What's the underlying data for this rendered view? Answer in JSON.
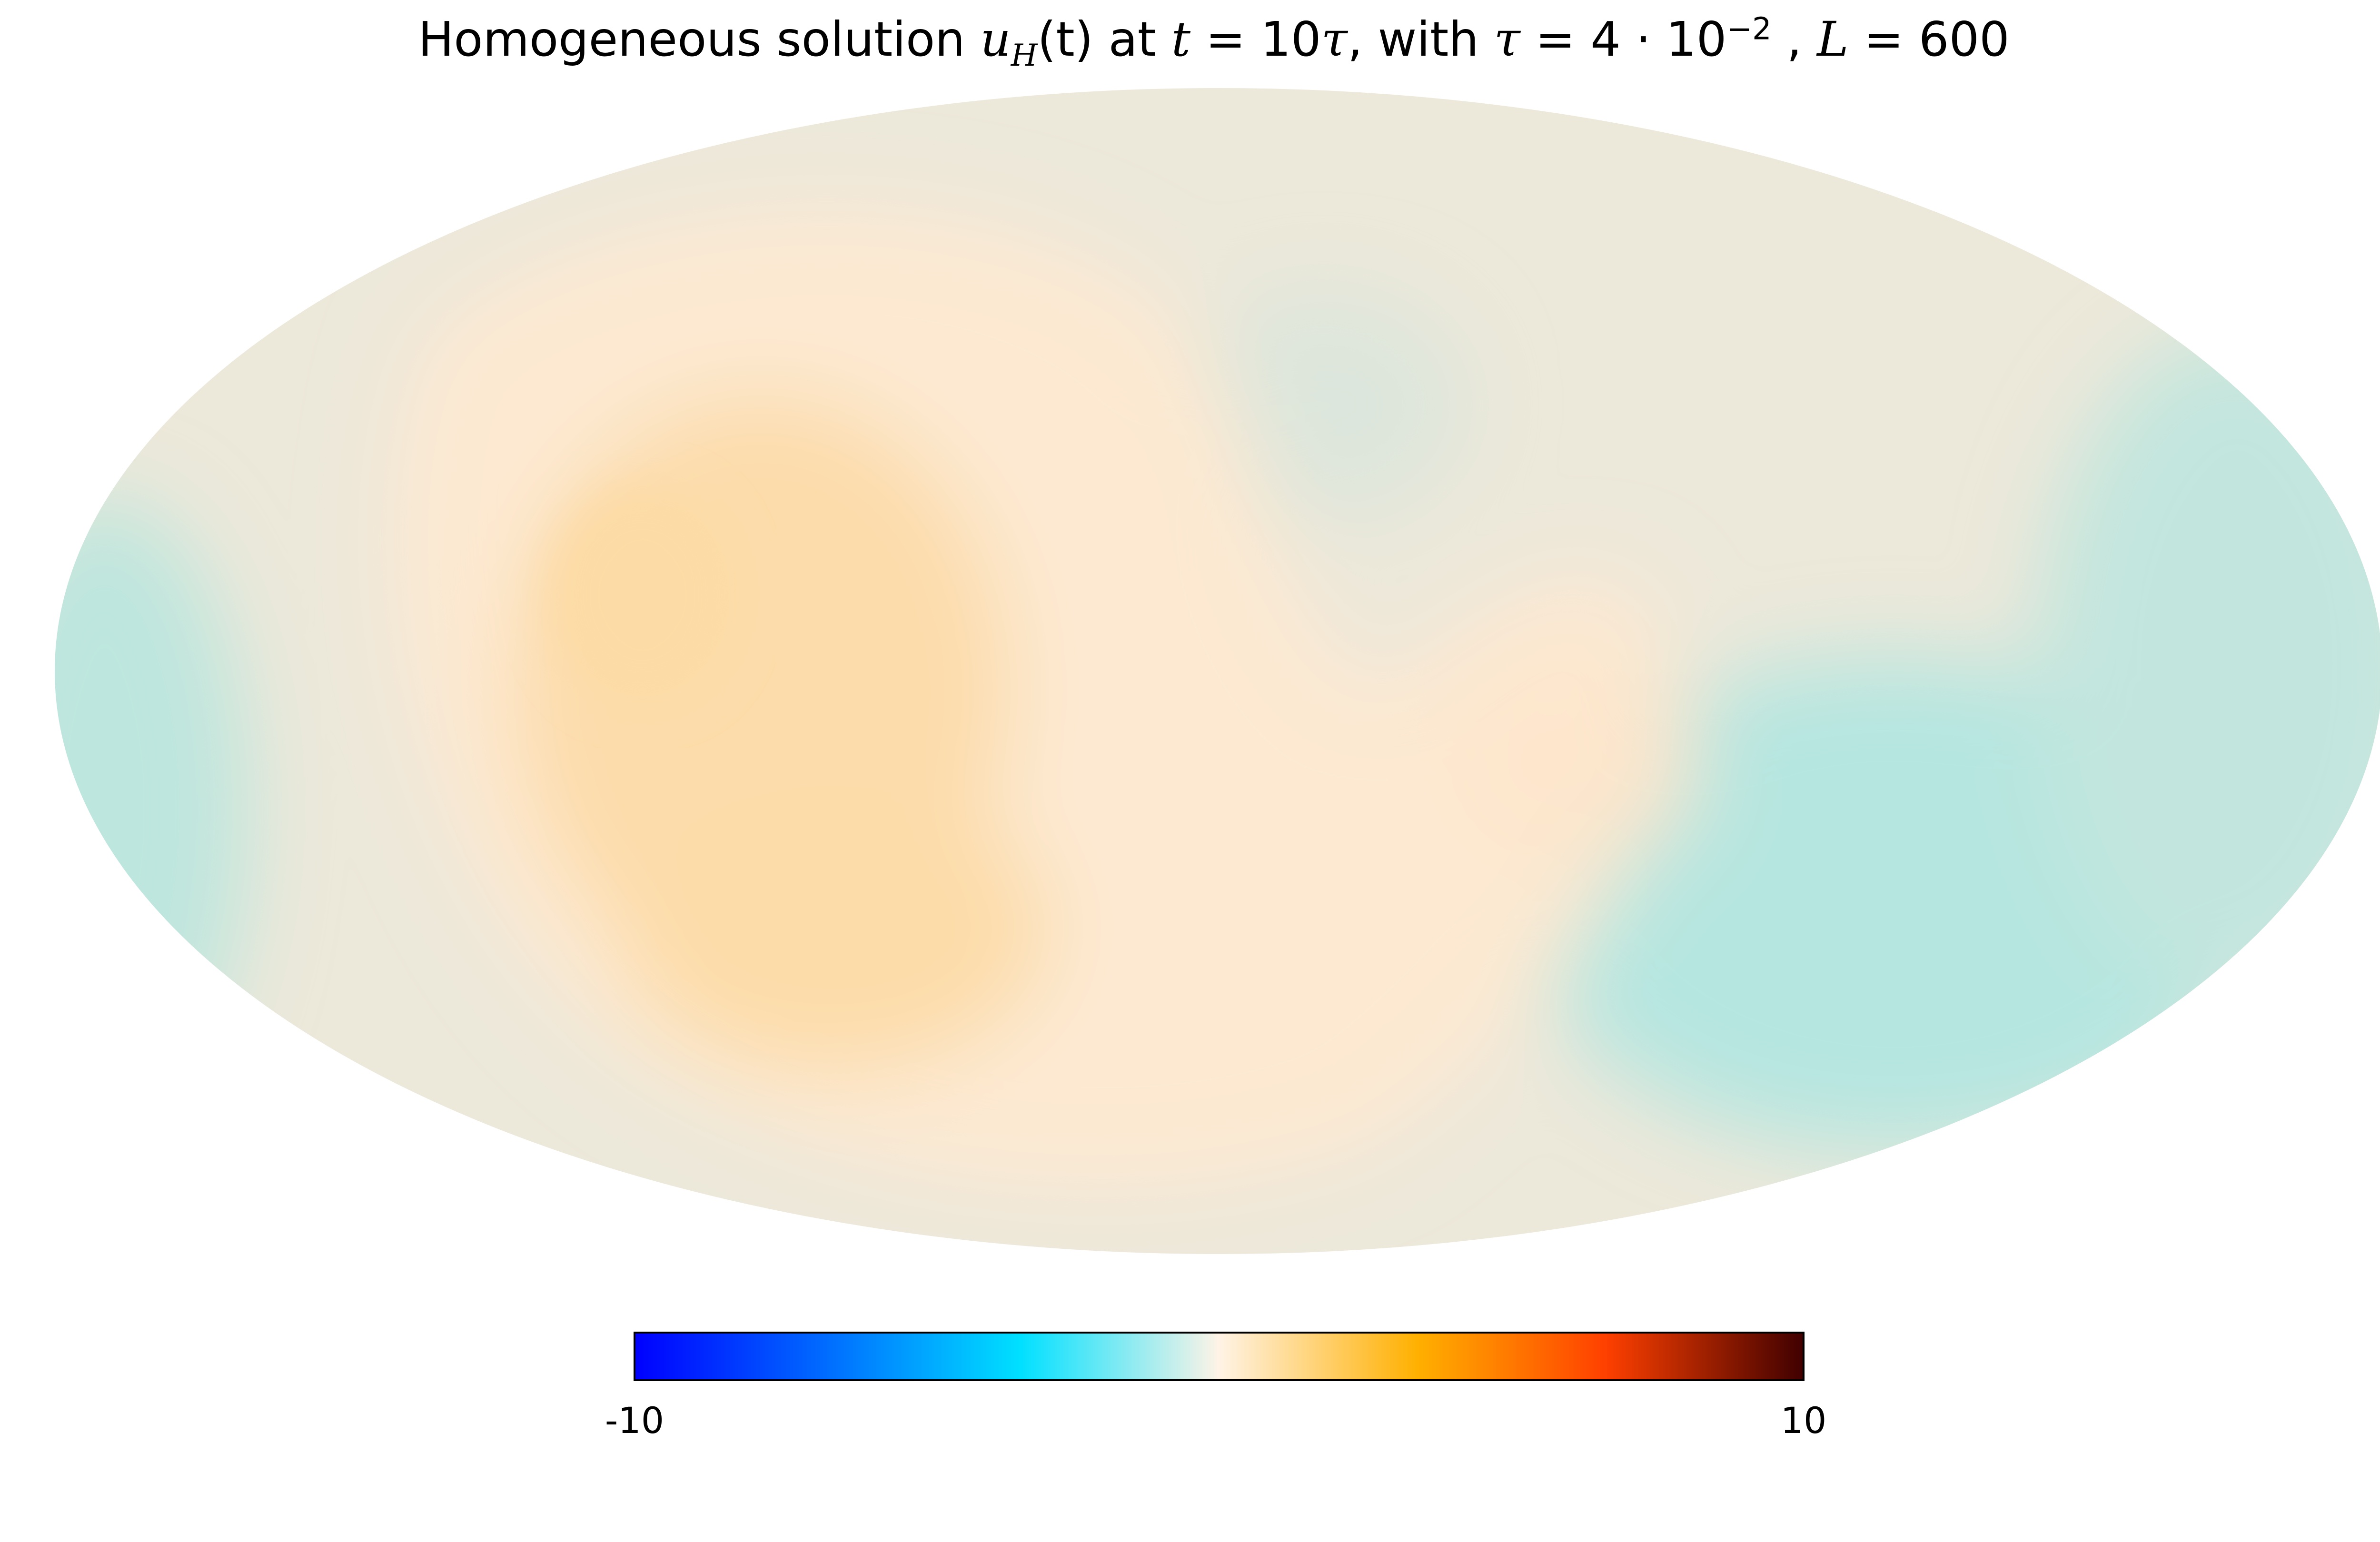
{
  "chart_data": {
    "type": "heatmap",
    "projection": "mollweide",
    "title": {
      "prefix": "Homogeneous solution ",
      "u": "u",
      "u_sub": "H",
      "t_arg": "(t)",
      "at": " at ",
      "t": "t",
      "eq1": " = 10",
      "tau": "τ",
      "with": ", with ",
      "eq2": " = 4 · 10",
      "exp": "−2",
      "sep": " , ",
      "L": "L",
      "eq3": " = 600"
    },
    "colorbar": {
      "min": -10,
      "max": 10,
      "min_label": "-10",
      "max_label": "10",
      "stops": [
        "#0000ff",
        "#0070ff",
        "#00e0ff",
        "#fff3e6",
        "#ffb000",
        "#ff4000",
        "#400000"
      ]
    },
    "field_estimate": {
      "peak_positive_region": "centre-left lobe",
      "negative_region": "right and far-left edges",
      "approx_range": [
        -2,
        2
      ]
    }
  }
}
